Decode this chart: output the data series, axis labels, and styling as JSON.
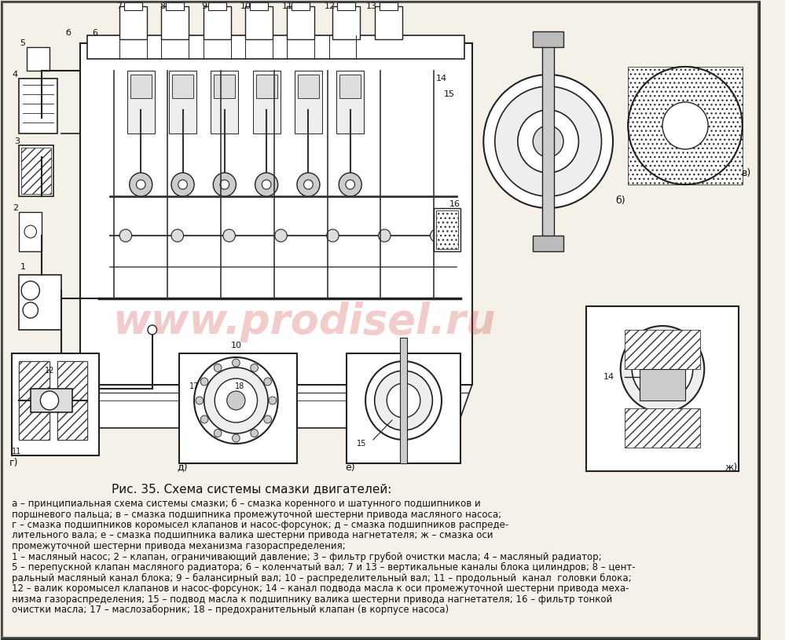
{
  "title": "Рис. 35. Схема системы смазки двигателей:",
  "caption_lines": [
    "а – принципиальная схема системы смазки; б – смазка коренного и шатунного подшипников и",
    "поршневого пальца; в – смазка подшипника промежуточной шестерни привода масляного насоса;",
    "г – смазка подшипников коромысел клапанов и насос-форсунок; д – смазка подшипников распреде-",
    "лительного вала; е – смазка подшипника валика шестерни привода нагнетателя; ж – смазка оси",
    "промежуточной шестерни привода механизма газораспределения;",
    "1 – масляный насос; 2 – клапан, ограничивающий давление; 3 – фильтр грубой очистки масла; 4 – масляный радиатор;",
    "5 – перепускной клапан масляного радиатора; 6 – коленчатый вал; 7 и 13 – вертикальные каналы блока цилиндров; 8 – цент-",
    "ральный масляный канал блока; 9 – балансирный вал; 10 – распределительный вал; 11 – продольный  канал  головки блока;",
    "12 – валик коромысел клапанов и насос-форсунок; 14 – канал подвода масла к оси промежуточной шестерни привода меха-",
    "низма газораспределения; 15 – подвод масла к подшипнику валика шестерни привода нагнетателя; 16 – фильтр тонкой",
    "очистки масла; 17 – маслозаборник; 18 – предохранительный клапан (в корпусе насоса)"
  ],
  "bg_color": "#f5f0e8",
  "border_color": "#222222",
  "title_fontsize": 11,
  "caption_fontsize": 8.5,
  "watermark_text": "www.prodisel.ru",
  "watermark_color": "#cc3333",
  "watermark_alpha": 0.25
}
